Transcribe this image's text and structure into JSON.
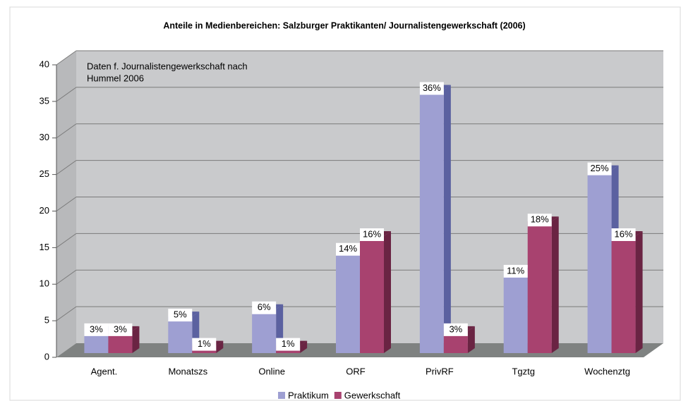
{
  "chart_data": {
    "type": "bar3d",
    "title": "Anteile in Medienbereichen: Salzburger Praktikanten/ Journalistengewerkschaft (2006)",
    "annotation": [
      "Daten f. Journalistengewerkschaft nach",
      "Hummel 2006"
    ],
    "categories": [
      "Agent.",
      "Monatszs",
      "Online",
      "ORF",
      "PrivRF",
      "Tgztg",
      "Wochenztg"
    ],
    "series": [
      {
        "name": "Praktikum",
        "color": "#9e9fd2",
        "side": "#5b61a0",
        "values": [
          3,
          5,
          6,
          14,
          36,
          11,
          25
        ],
        "value_labels": [
          "3%",
          "5%",
          "6%",
          "14%",
          "36%",
          "11%",
          "25%"
        ]
      },
      {
        "name": "Gewerkschaft",
        "color": "#a8426f",
        "side": "#6a2443",
        "values": [
          3,
          1,
          1,
          16,
          3,
          18,
          16
        ],
        "value_labels": [
          "3%",
          "1%",
          "1%",
          "16%",
          "3%",
          "18%",
          "16%"
        ]
      }
    ],
    "ylim": [
      0,
      40
    ],
    "yticks": [
      0,
      5,
      10,
      15,
      20,
      25,
      30,
      35,
      40
    ],
    "grid": true,
    "legend": "bottom"
  }
}
